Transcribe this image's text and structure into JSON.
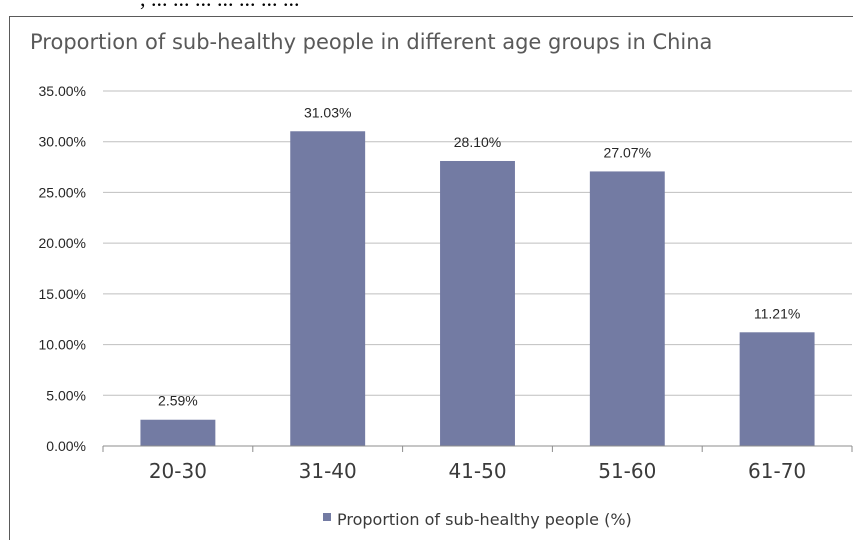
{
  "page_header_fragment": ", ... ... ... ... ... ... ...",
  "chart_data": {
    "type": "bar",
    "title": "Proportion of sub-healthy people in different age groups in China",
    "categories": [
      "20-30",
      "31-40",
      "41-50",
      "51-60",
      "61-70"
    ],
    "series": [
      {
        "name": "Proportion of sub-healthy people (%)",
        "values": [
          2.59,
          31.03,
          28.1,
          27.07,
          11.21
        ],
        "labels": [
          "2.59%",
          "31.03%",
          "28.10%",
          "27.07%",
          "11.21%"
        ]
      }
    ],
    "y_ticks": [
      "0.00%",
      "5.00%",
      "10.00%",
      "15.00%",
      "20.00%",
      "25.00%",
      "30.00%",
      "35.00%"
    ],
    "ylim": [
      0,
      35
    ],
    "grid": "horizontal",
    "legend_position": "bottom",
    "bar_color": "#737ba3",
    "grid_color": "#bfbfbf"
  }
}
